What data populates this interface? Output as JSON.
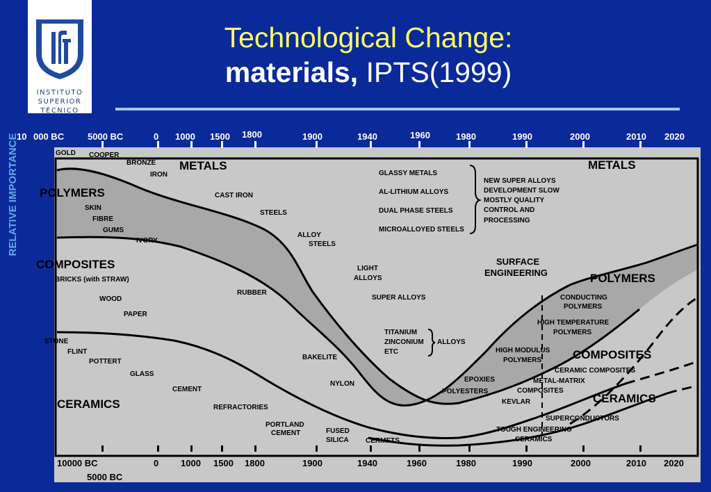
{
  "logo": {
    "line1": "INSTITUTO",
    "line2": "SUPERIOR",
    "line3": "TÉCNICO"
  },
  "title": {
    "line1": "Technological Change:",
    "bold": "materials,",
    "rest": " IPTS(1999)"
  },
  "y_axis_label": "RELATIVE IMPORTANCE",
  "chart_data": {
    "type": "diagram",
    "top_axis_labels": [
      "10",
      "000 BC",
      "5000 BC",
      "0",
      "1000",
      "1500",
      "1800",
      "1900",
      "1940",
      "1960",
      "1980",
      "1990",
      "2000",
      "2010",
      "2020"
    ],
    "bottom_axis_labels": [
      "10000 BC",
      "5000 BC",
      "0",
      "1000",
      "1500",
      "1800",
      "1900",
      "1940",
      "1960",
      "1980",
      "1990",
      "2000",
      "2010",
      "2020"
    ],
    "class_labels": [
      "METALS",
      "METALS",
      "POLYMERS",
      "POLYMERS",
      "COMPOSITES",
      "COMPOSITES",
      "CERAMICS",
      "CERAMICS"
    ],
    "annotations": [
      "GOLD",
      "COOPER",
      "BRONZE",
      "IRON",
      "CAST IRON",
      "STEELS",
      "ALLOY",
      "STEELS",
      "SKIN",
      "FIBRE",
      "GUMS",
      "IVORY",
      "BRICKS (with STRAW)",
      "WOOD",
      "PAPER",
      "RUBBER",
      "LIGHT",
      "ALLOYS",
      "SUPER ALLOYS",
      "GLASSY METALS",
      "AL-LITHIUM ALLOYS",
      "DUAL PHASE STEELS",
      "MICROALLOYED STEELS",
      "NEW SUPER ALLOYS",
      "DEVELOPMENT SLOW",
      "MOSTLY QUALITY",
      "CONTROL AND",
      "PROCESSING",
      "SURFACE",
      "ENGINEERING",
      "TITANIUM",
      "ZINCONIUM",
      "ETC",
      "ALLOYS",
      "STONE",
      "FLINT",
      "POTTERT",
      "GLASS",
      "CEMENT",
      "REFRACTORIES",
      "PORTLAND",
      "CEMENT",
      "BAKELITE",
      "NYLON",
      "FUSED",
      "SILICA",
      "CERMETS",
      "EPOXIES",
      "POLYESTERS",
      "CONDUCTING",
      "POLYMERS",
      "HIGH TEMPERATURE",
      "POLYMERS",
      "HIGH MODULUS",
      "POLYMERS",
      "CERAMIC COMPOSITES",
      "METAL-MATRIX",
      "COMPOSITES",
      "KEVLAR",
      "SUPERCONDUCTORS",
      "TOUGH ENGINEERING",
      "CERAMICS"
    ]
  },
  "colors": {
    "background": "#0a2a9a",
    "title": "#ffff66",
    "band_dark": "#a8a8a8",
    "band_light": "#dcdcdc",
    "axis_label": "#62a8e6"
  }
}
